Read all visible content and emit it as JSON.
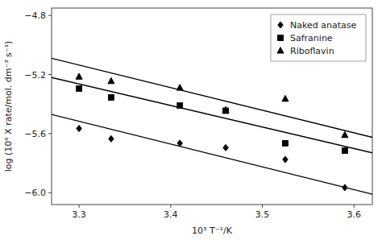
{
  "chart_data": {
    "type": "scatter",
    "title": "",
    "xlabel": "10³ T⁻¹/K",
    "ylabel": "log (10⁶ X rate/mol. dm⁻³ s⁻¹)",
    "xlim": [
      3.27,
      3.62
    ],
    "ylim": [
      -6.08,
      -4.75
    ],
    "xticks": [
      3.3,
      3.4,
      3.5,
      3.6
    ],
    "yticks": [
      {
        "value": -6.0,
        "label": "−6.0"
      },
      {
        "value": -5.6,
        "label": "−5.6"
      },
      {
        "value": -5.2,
        "label": "−5.2"
      },
      {
        "value": -4.8,
        "label": "−4.8"
      }
    ],
    "legend": "upper right",
    "series": [
      {
        "type": "line",
        "color": "black",
        "x": [
          3.27,
          3.62
        ],
        "values": [
          -5.47,
          -6.01
        ]
      },
      {
        "type": "scatter",
        "name": "Naked anatase",
        "marker": "diamond",
        "color": "black",
        "x": [
          3.3,
          3.335,
          3.41,
          3.46,
          3.525,
          3.59
        ],
        "values": [
          -5.565,
          -5.635,
          -5.665,
          -5.695,
          -5.775,
          -5.965
        ]
      },
      {
        "type": "line",
        "color": "black",
        "x": [
          3.27,
          3.62
        ],
        "values": [
          -5.22,
          -5.73
        ]
      },
      {
        "type": "scatter",
        "name": "Safranine",
        "marker": "square",
        "color": "black",
        "x": [
          3.3,
          3.335,
          3.41,
          3.46,
          3.525,
          3.59
        ],
        "values": [
          -5.295,
          -5.355,
          -5.41,
          -5.445,
          -5.665,
          -5.715
        ]
      },
      {
        "type": "line",
        "color": "black",
        "x": [
          3.27,
          3.62
        ],
        "values": [
          -5.09,
          -5.625
        ]
      },
      {
        "type": "scatter",
        "name": "Riboflavin",
        "marker": "triangle",
        "color": "black",
        "x": [
          3.3,
          3.335,
          3.41,
          3.46,
          3.525,
          3.59
        ],
        "values": [
          -5.215,
          -5.245,
          -5.29,
          -5.44,
          -5.365,
          -5.61
        ]
      }
    ]
  }
}
